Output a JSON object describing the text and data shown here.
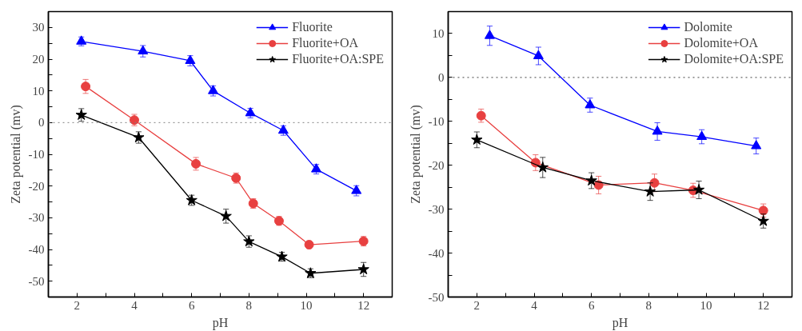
{
  "chart_data": [
    {
      "type": "line",
      "xlabel": "pH",
      "ylabel": "Zeta potential (mv)",
      "xlim": [
        1,
        13
      ],
      "ylim": [
        -55,
        35
      ],
      "xticks": [
        2,
        {
          "value": 3,
          "label": null
        },
        4,
        {
          "value": 5,
          "label": null
        },
        6,
        {
          "value": 7,
          "label": null
        },
        8,
        {
          "value": 9,
          "label": null
        },
        10,
        {
          "value": 11,
          "label": null
        },
        12
      ],
      "yticks": [
        -50,
        {
          "value": -45,
          "label": null
        },
        -40,
        {
          "value": -35,
          "label": null
        },
        -30,
        {
          "value": -25,
          "label": null
        },
        -20,
        {
          "value": -15,
          "label": null
        },
        -10,
        {
          "value": -5,
          "label": null
        },
        0,
        {
          "value": 5,
          "label": null
        },
        10,
        {
          "value": 15,
          "label": null
        },
        20,
        {
          "value": 25,
          "label": null
        },
        30
      ],
      "grid": false,
      "legend": "top right",
      "ref_lines": [
        {
          "axis": "y",
          "value": 0,
          "label": null,
          "color": "#808080",
          "line_style": "dotted"
        }
      ],
      "series": [
        {
          "name": "Fluorite",
          "color": "#0000ff",
          "marker": "triangle",
          "x": [
            2.15,
            4.3,
            5.95,
            6.75,
            8.05,
            9.2,
            10.35,
            11.75
          ],
          "values": [
            25.6,
            22.5,
            19.5,
            10,
            3,
            -2.5,
            -14.7,
            -21.5
          ],
          "errors": [
            1.4,
            1.8,
            1.6,
            1.6,
            1.5,
            1.5,
            1.5,
            1.6
          ]
        },
        {
          "name": "Fluorite+OA",
          "color": "#e84040",
          "marker": "circle",
          "x": [
            2.3,
            4.0,
            6.15,
            7.55,
            8.15,
            9.05,
            10.1,
            12.0
          ],
          "values": [
            11.4,
            0.8,
            -13,
            -17.5,
            -25.5,
            -31,
            -38.5,
            -37.4
          ],
          "errors": [
            2.2,
            1.8,
            2,
            1.6,
            1.5,
            1.4,
            1.2,
            1.5
          ]
        },
        {
          "name": "Fluorite+OA:SPE",
          "color": "#000000",
          "marker": "star",
          "x": [
            2.15,
            4.15,
            6.0,
            7.2,
            8.0,
            9.15,
            10.15,
            12.0
          ],
          "values": [
            2.4,
            -4.7,
            -24.5,
            -29.5,
            -37.5,
            -42.3,
            -47.5,
            -46.3
          ],
          "errors": [
            2,
            1.8,
            1.6,
            2.2,
            1.8,
            1.4,
            1.4,
            2.2
          ]
        }
      ]
    },
    {
      "type": "line",
      "xlabel": "pH",
      "ylabel": "Zeta potential (mv)",
      "xlim": [
        1,
        13
      ],
      "ylim": [
        -50,
        15
      ],
      "xticks": [
        2,
        {
          "value": 3,
          "label": null
        },
        4,
        {
          "value": 5,
          "label": null
        },
        6,
        {
          "value": 7,
          "label": null
        },
        8,
        {
          "value": 9,
          "label": null
        },
        10,
        {
          "value": 11,
          "label": null
        },
        12
      ],
      "yticks": [
        -50,
        {
          "value": -45,
          "label": null
        },
        -40,
        {
          "value": -35,
          "label": null
        },
        -30,
        {
          "value": -25,
          "label": null
        },
        -20,
        {
          "value": -15,
          "label": null
        },
        -10,
        {
          "value": -5,
          "label": null
        },
        0,
        {
          "value": 5,
          "label": null
        },
        10
      ],
      "grid": false,
      "legend": "top right",
      "ref_lines": [
        {
          "axis": "y",
          "value": 0,
          "label": null,
          "color": "#404040",
          "line_style": "dotted"
        }
      ],
      "series": [
        {
          "name": "Dolomite",
          "color": "#0000ff",
          "marker": "triangle",
          "x": [
            2.45,
            4.15,
            5.95,
            8.3,
            9.85,
            11.75
          ],
          "values": [
            9.5,
            4.9,
            -6.3,
            -12.3,
            -13.5,
            -15.6
          ],
          "errors": [
            2.2,
            2,
            1.6,
            2,
            1.6,
            1.8
          ]
        },
        {
          "name": "Dolomite+OA",
          "color": "#e84040",
          "marker": "circle",
          "x": [
            2.15,
            4.05,
            6.25,
            8.2,
            9.55,
            12.0
          ],
          "values": [
            -8.7,
            -19.4,
            -24.5,
            -24,
            -25.7,
            -30.3
          ],
          "errors": [
            1.5,
            1.8,
            2,
            2,
            1.6,
            1.5
          ]
        },
        {
          "name": "Dolomite+OA:SPE",
          "color": "#000000",
          "marker": "star",
          "x": [
            2.0,
            4.3,
            6.0,
            8.05,
            9.75,
            12.0
          ],
          "values": [
            -14.2,
            -20.5,
            -23.5,
            -26,
            -25.6,
            -32.7
          ],
          "errors": [
            1.8,
            2.3,
            1.8,
            2,
            2,
            1.6
          ]
        }
      ]
    }
  ]
}
